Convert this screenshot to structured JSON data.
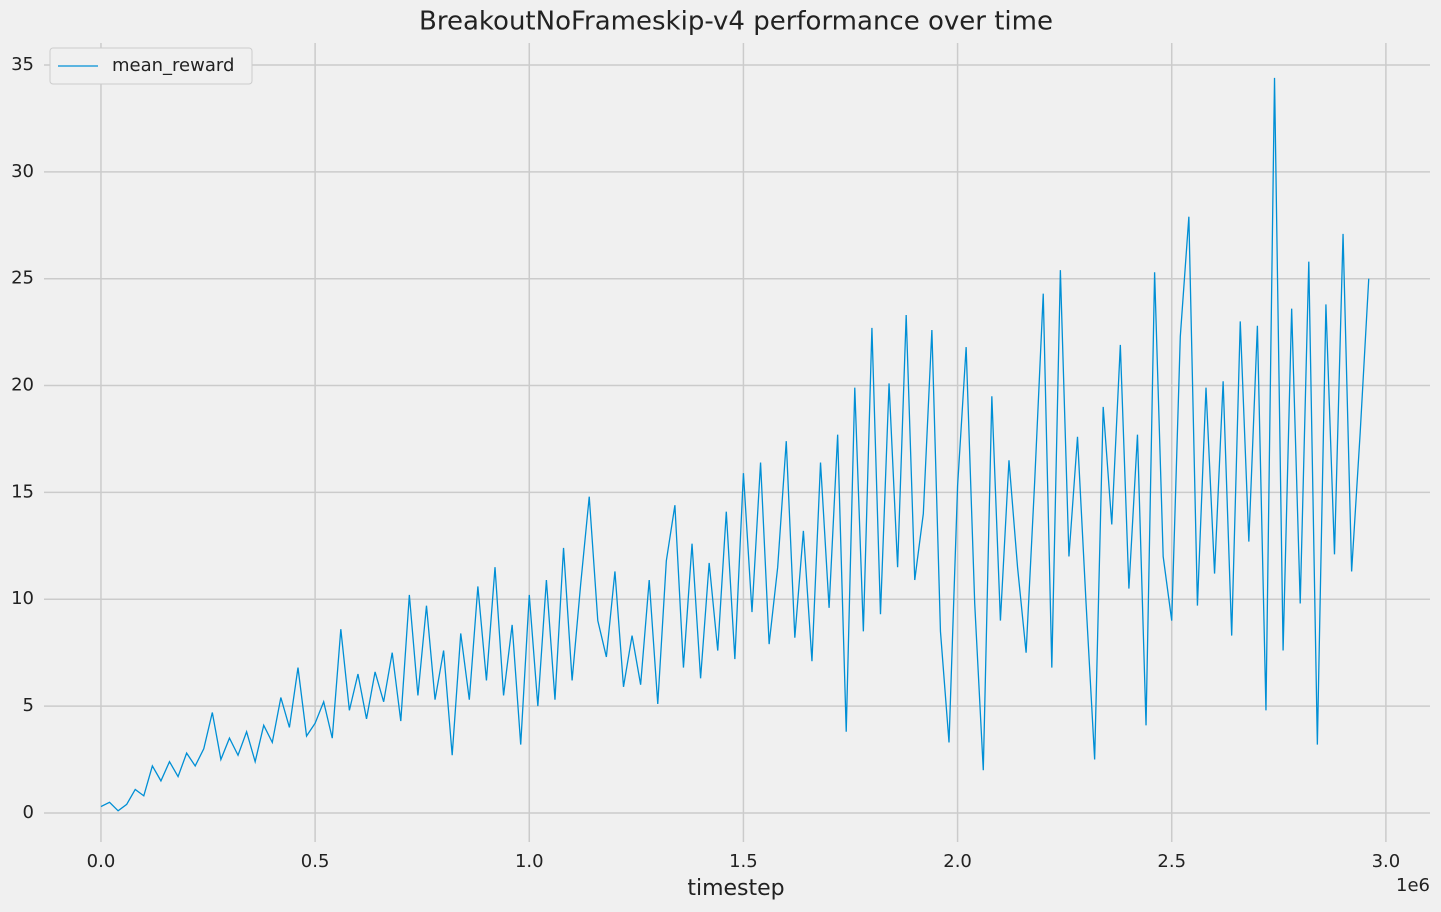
{
  "chart_data": {
    "type": "line",
    "title": "BreakoutNoFrameskip-v4 performance over time",
    "xlabel": "timestep",
    "x_offset_label": "1e6",
    "x": [
      0,
      20000,
      40000,
      60000,
      80000,
      100000,
      120000,
      140000,
      160000,
      180000,
      200000,
      220000,
      240000,
      260000,
      280000,
      300000,
      320000,
      340000,
      360000,
      380000,
      400000,
      420000,
      440000,
      460000,
      480000,
      500000,
      520000,
      540000,
      560000,
      580000,
      600000,
      620000,
      640000,
      660000,
      680000,
      700000,
      720000,
      740000,
      760000,
      780000,
      800000,
      820000,
      840000,
      860000,
      880000,
      900000,
      920000,
      940000,
      960000,
      980000,
      1000000,
      1020000,
      1040000,
      1060000,
      1080000,
      1100000,
      1120000,
      1140000,
      1160000,
      1180000,
      1200000,
      1220000,
      1240000,
      1260000,
      1280000,
      1300000,
      1320000,
      1340000,
      1360000,
      1380000,
      1400000,
      1420000,
      1440000,
      1460000,
      1480000,
      1500000,
      1520000,
      1540000,
      1560000,
      1580000,
      1600000,
      1620000,
      1640000,
      1660000,
      1680000,
      1700000,
      1720000,
      1740000,
      1760000,
      1780000,
      1800000,
      1820000,
      1840000,
      1860000,
      1880000,
      1900000,
      1920000,
      1940000,
      1960000,
      1980000,
      2000000,
      2020000,
      2040000,
      2060000,
      2080000,
      2100000,
      2120000,
      2140000,
      2160000,
      2180000,
      2200000,
      2220000,
      2240000,
      2260000,
      2280000,
      2300000,
      2320000,
      2340000,
      2360000,
      2380000,
      2400000,
      2420000,
      2440000,
      2460000,
      2480000,
      2500000,
      2520000,
      2540000,
      2560000,
      2580000,
      2600000,
      2620000,
      2640000,
      2660000,
      2680000,
      2700000,
      2720000,
      2740000,
      2760000,
      2780000,
      2800000,
      2820000,
      2840000,
      2860000,
      2880000,
      2900000,
      2920000,
      2940000,
      2960000
    ],
    "series": [
      {
        "name": "mean_reward",
        "color": "#008fd5",
        "values": [
          0.3,
          0.5,
          0.1,
          0.4,
          1.1,
          0.8,
          2.2,
          1.5,
          2.4,
          1.7,
          2.8,
          2.2,
          3.0,
          4.7,
          2.5,
          3.5,
          2.7,
          3.8,
          2.4,
          4.1,
          3.3,
          5.4,
          4.0,
          6.8,
          3.6,
          4.2,
          5.2,
          3.5,
          8.6,
          4.8,
          6.5,
          4.4,
          6.6,
          5.2,
          7.5,
          4.3,
          10.2,
          5.5,
          9.7,
          5.3,
          7.6,
          2.7,
          8.4,
          5.3,
          10.6,
          6.2,
          11.5,
          5.5,
          8.8,
          3.2,
          10.2,
          5.0,
          10.9,
          5.3,
          12.4,
          6.2,
          10.7,
          14.8,
          9.0,
          7.3,
          11.3,
          5.9,
          8.3,
          6.0,
          10.9,
          5.1,
          11.8,
          14.4,
          6.8,
          12.6,
          6.3,
          11.7,
          7.6,
          14.1,
          7.2,
          15.9,
          9.4,
          16.4,
          7.9,
          11.5,
          17.4,
          8.2,
          13.2,
          7.1,
          16.4,
          9.6,
          17.7,
          3.8,
          19.9,
          8.5,
          22.7,
          9.3,
          20.1,
          11.5,
          23.3,
          10.9,
          14.0,
          22.6,
          8.5,
          3.3,
          15.3,
          21.8,
          9.8,
          2.0,
          19.5,
          9.0,
          16.5,
          11.5,
          7.5,
          15.5,
          24.3,
          6.8,
          25.4,
          12.0,
          17.6,
          9.8,
          2.5,
          19.0,
          13.5,
          21.9,
          10.5,
          17.7,
          4.1,
          25.3,
          12.0,
          9.0,
          22.3,
          27.9,
          9.7,
          19.9,
          11.2,
          20.2,
          8.3,
          23.0,
          12.7,
          22.8,
          4.8,
          34.4,
          7.6,
          23.6,
          9.8,
          25.8,
          3.2,
          23.8,
          12.1,
          27.1,
          11.3,
          17.8,
          25.0
        ]
      }
    ],
    "xlim": [
      -133000,
      3103000
    ],
    "ylim": [
      -1.36,
      36.03
    ],
    "xticks": [
      {
        "value": 0,
        "label": "0.0"
      },
      {
        "value": 500000,
        "label": "0.5"
      },
      {
        "value": 1000000,
        "label": "1.0"
      },
      {
        "value": 1500000,
        "label": "1.5"
      },
      {
        "value": 2000000,
        "label": "2.0"
      },
      {
        "value": 2500000,
        "label": "2.5"
      },
      {
        "value": 3000000,
        "label": "3.0"
      }
    ],
    "yticks": [
      0,
      5,
      10,
      15,
      20,
      25,
      30,
      35
    ],
    "grid": true,
    "legend": "upper-left"
  }
}
